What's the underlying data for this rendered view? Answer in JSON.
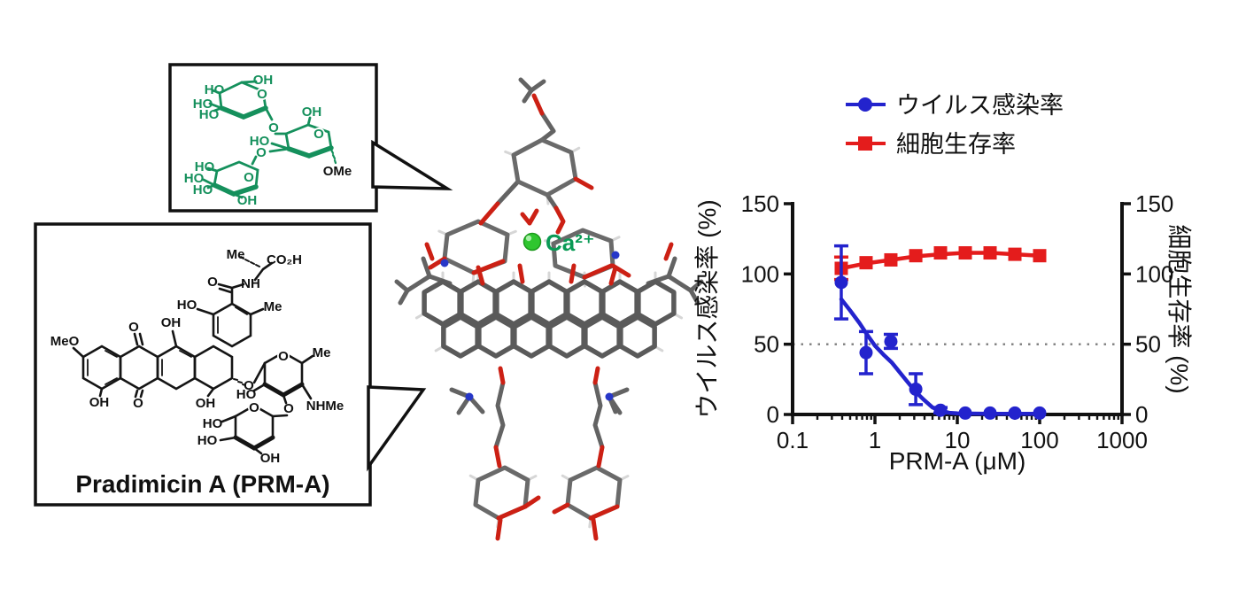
{
  "sugar_bubble": {
    "color": "#15905c",
    "labels": [
      "HO",
      "OH",
      "HO",
      "HO",
      "O",
      "O",
      "OH",
      "HO",
      "O",
      "OMe",
      "O",
      "HO",
      "HO",
      "HO",
      "O",
      "OH"
    ]
  },
  "pradimicin": {
    "caption": "Pradimicin A (PRM-A)",
    "labels": [
      "Me",
      "CO₂H",
      "O",
      "NH",
      "HO",
      "OH",
      "Me",
      "MeO",
      "O",
      "OH",
      "O",
      "OH",
      "O",
      "O",
      "Me",
      "HO",
      "NHMe",
      "O",
      "O",
      "HO",
      "HO",
      "OH"
    ]
  },
  "model3d": {
    "ca_label": "Ca²⁺",
    "ca_color": "#0a9a55",
    "sphere_color": "#2fc62f"
  },
  "chart_data": {
    "type": "scatter",
    "x_scale": "log",
    "xlim": [
      0.1,
      1000
    ],
    "ylim": [
      0,
      150
    ],
    "x_ticks": [
      0.1,
      1,
      10,
      100,
      1000
    ],
    "x_tick_labels": [
      "0.1",
      "1",
      "10",
      "100",
      "1000"
    ],
    "y_ticks": [
      0,
      50,
      100,
      150
    ],
    "xlabel": "PRM-A (μM)",
    "ylabel_left": "ウイルス感染率 (%)",
    "ylabel_right": "細胞生存率 (%)",
    "reference_line_y": 50,
    "grid": false,
    "legend_position": "top",
    "series": [
      {
        "name": "細胞生存率",
        "color": "#e41c1c",
        "marker": "square",
        "axis": "right",
        "x": [
          0.39,
          0.78,
          1.56,
          3.13,
          6.25,
          12.5,
          25,
          50,
          100
        ],
        "y": [
          104,
          108,
          110,
          113,
          115,
          115,
          115,
          114,
          113
        ],
        "err": [
          8,
          0,
          0,
          0,
          0,
          0,
          0,
          0,
          0
        ],
        "fit": [
          [
            0.39,
            104
          ],
          [
            0.78,
            107.5
          ],
          [
            1.56,
            110
          ],
          [
            3.13,
            112.5
          ],
          [
            6.25,
            114
          ],
          [
            12.5,
            115
          ],
          [
            25,
            115
          ],
          [
            50,
            114
          ],
          [
            100,
            113
          ]
        ]
      },
      {
        "name": "ウイルス感染率",
        "color": "#2323cd",
        "marker": "circle",
        "axis": "left",
        "x": [
          0.39,
          0.78,
          1.56,
          3.13,
          6.25,
          12.5,
          25,
          50,
          100
        ],
        "y": [
          94,
          44,
          52,
          18,
          3,
          1,
          1,
          1,
          1
        ],
        "err": [
          26,
          15,
          5,
          11,
          2,
          0,
          0,
          0,
          0
        ],
        "fit": [
          [
            0.39,
            82
          ],
          [
            0.5,
            74
          ],
          [
            0.65,
            65
          ],
          [
            0.8,
            57
          ],
          [
            1.0,
            49
          ],
          [
            1.3,
            42
          ],
          [
            1.6,
            37
          ],
          [
            2.0,
            30
          ],
          [
            2.5,
            23
          ],
          [
            3.13,
            16
          ],
          [
            4.0,
            10
          ],
          [
            5.0,
            5
          ],
          [
            6.25,
            2.5
          ],
          [
            8,
            1.2
          ],
          [
            10,
            0.8
          ],
          [
            15,
            0.6
          ],
          [
            25,
            0.5
          ],
          [
            50,
            0.5
          ],
          [
            100,
            0.5
          ]
        ]
      }
    ],
    "legend": [
      {
        "label": "ウイルス感染率",
        "color": "#2323cd",
        "marker": "circle"
      },
      {
        "label": "細胞生存率",
        "color": "#e41c1c",
        "marker": "square"
      }
    ]
  }
}
